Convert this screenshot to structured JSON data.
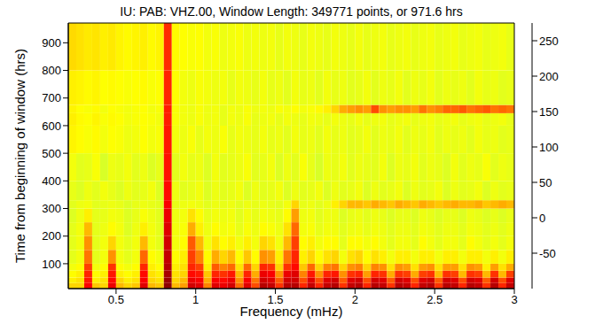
{
  "chart_data": {
    "type": "heatmap",
    "title": "IU: PAB: VHZ.00,  Window Length: 349771 points, or 971.6 hrs",
    "x_label": "Frequency (mHz)",
    "y_label": "Time from beginning of window (hrs)",
    "xlim": [
      0.2,
      3
    ],
    "xticks": [
      0.5,
      1,
      1.5,
      2,
      2.5,
      3
    ],
    "ylim": [
      10,
      971.6
    ],
    "yticks": [
      100,
      200,
      300,
      400,
      500,
      600,
      700,
      800,
      900
    ],
    "x_edges": [
      0.2,
      0.25,
      0.3,
      0.35,
      0.4,
      0.45,
      0.5,
      0.55,
      0.6,
      0.65,
      0.7,
      0.75,
      0.8,
      0.85,
      0.9,
      0.95,
      1,
      1.05,
      1.1,
      1.15,
      1.2,
      1.25,
      1.3,
      1.35,
      1.4,
      1.45,
      1.5,
      1.55,
      1.6,
      1.65,
      1.7,
      1.75,
      1.8,
      1.85,
      1.9,
      1.95,
      2,
      2.05,
      2.1,
      2.15,
      2.2,
      2.25,
      2.3,
      2.35,
      2.4,
      2.45,
      2.5,
      2.55,
      2.6,
      2.65,
      2.7,
      2.75,
      2.8,
      2.85,
      2.9,
      2.95,
      3
    ],
    "y_edges": [
      10,
      30,
      50,
      75,
      100,
      150,
      200,
      250,
      300,
      330,
      400,
      500,
      600,
      645,
      675,
      800,
      971.6
    ],
    "cells": [
      [
        150,
        150,
        230,
        155,
        150,
        235,
        160,
        150,
        155,
        240,
        160,
        155,
        270,
        160,
        170,
        245,
        240,
        180,
        240,
        235,
        245,
        190,
        240,
        200,
        255,
        250,
        210,
        255,
        255,
        215,
        250,
        215,
        250,
        255,
        210,
        250,
        255,
        215,
        255,
        250,
        210,
        255,
        250,
        215,
        250,
        255,
        210,
        255,
        250,
        215,
        255,
        250,
        210,
        255,
        215,
        250
      ],
      [
        140,
        145,
        220,
        140,
        145,
        225,
        150,
        140,
        145,
        230,
        150,
        145,
        265,
        150,
        160,
        235,
        230,
        165,
        230,
        225,
        235,
        175,
        230,
        185,
        245,
        240,
        195,
        245,
        245,
        200,
        240,
        200,
        240,
        245,
        195,
        240,
        245,
        200,
        245,
        240,
        195,
        245,
        240,
        200,
        240,
        245,
        195,
        245,
        240,
        200,
        245,
        240,
        195,
        245,
        200,
        240
      ],
      [
        135,
        140,
        215,
        135,
        140,
        220,
        140,
        135,
        140,
        225,
        145,
        140,
        260,
        145,
        150,
        225,
        220,
        155,
        215,
        210,
        220,
        160,
        215,
        165,
        235,
        230,
        175,
        235,
        240,
        180,
        220,
        175,
        215,
        220,
        175,
        210,
        215,
        170,
        215,
        210,
        165,
        210,
        205,
        165,
        205,
        210,
        160,
        210,
        205,
        160,
        210,
        205,
        160,
        210,
        160,
        205
      ],
      [
        130,
        135,
        205,
        130,
        135,
        210,
        135,
        130,
        135,
        215,
        140,
        135,
        255,
        140,
        145,
        215,
        205,
        140,
        195,
        180,
        190,
        145,
        190,
        150,
        215,
        210,
        150,
        210,
        225,
        155,
        190,
        150,
        180,
        185,
        150,
        175,
        180,
        150,
        180,
        175,
        145,
        175,
        170,
        145,
        170,
        175,
        145,
        170,
        170,
        145,
        175,
        170,
        140,
        170,
        145,
        165
      ],
      [
        125,
        130,
        185,
        125,
        130,
        175,
        130,
        125,
        130,
        190,
        135,
        130,
        250,
        135,
        140,
        205,
        180,
        135,
        165,
        150,
        160,
        135,
        155,
        135,
        175,
        170,
        140,
        185,
        215,
        140,
        150,
        135,
        145,
        150,
        130,
        145,
        150,
        135,
        145,
        140,
        130,
        140,
        140,
        130,
        140,
        140,
        130,
        140,
        140,
        130,
        140,
        140,
        130,
        140,
        130,
        140
      ],
      [
        125,
        130,
        175,
        125,
        130,
        150,
        130,
        125,
        130,
        160,
        130,
        125,
        245,
        130,
        135,
        195,
        160,
        130,
        145,
        135,
        140,
        130,
        140,
        130,
        150,
        145,
        130,
        160,
        205,
        135,
        140,
        130,
        135,
        135,
        125,
        135,
        135,
        130,
        135,
        130,
        125,
        130,
        130,
        125,
        135,
        130,
        125,
        130,
        130,
        125,
        135,
        130,
        125,
        130,
        125,
        130
      ],
      [
        125,
        130,
        160,
        125,
        128,
        135,
        130,
        122,
        128,
        140,
        130,
        125,
        240,
        130,
        132,
        165,
        140,
        128,
        135,
        130,
        132,
        126,
        132,
        128,
        135,
        132,
        128,
        145,
        190,
        130,
        132,
        126,
        130,
        130,
        124,
        128,
        130,
        126,
        130,
        128,
        124,
        128,
        128,
        124,
        130,
        128,
        124,
        128,
        128,
        124,
        130,
        128,
        124,
        128,
        124,
        128
      ],
      [
        122,
        128,
        140,
        125,
        126,
        130,
        128,
        122,
        126,
        132,
        128,
        124,
        235,
        128,
        130,
        145,
        135,
        126,
        130,
        128,
        130,
        124,
        130,
        126,
        130,
        128,
        126,
        135,
        170,
        128,
        130,
        124,
        128,
        128,
        122,
        126,
        128,
        124,
        128,
        126,
        122,
        126,
        126,
        122,
        128,
        126,
        122,
        126,
        126,
        122,
        128,
        126,
        122,
        126,
        122,
        126
      ],
      [
        124,
        128,
        130,
        124,
        126,
        128,
        126,
        122,
        126,
        128,
        126,
        124,
        230,
        126,
        128,
        130,
        128,
        124,
        128,
        126,
        128,
        124,
        128,
        126,
        128,
        126,
        124,
        130,
        150,
        126,
        128,
        124,
        128,
        140,
        150,
        160,
        160,
        155,
        165,
        160,
        155,
        165,
        160,
        155,
        165,
        160,
        155,
        160,
        165,
        160,
        160,
        165,
        155,
        160,
        165,
        160
      ],
      [
        126,
        122,
        128,
        124,
        130,
        126,
        122,
        128,
        124,
        126,
        130,
        122,
        225,
        128,
        124,
        126,
        130,
        122,
        128,
        124,
        126,
        130,
        122,
        128,
        124,
        126,
        130,
        122,
        128,
        124,
        126,
        130,
        122,
        128,
        124,
        126,
        130,
        122,
        128,
        124,
        126,
        130,
        122,
        128,
        124,
        126,
        130,
        122,
        128,
        124,
        126,
        130,
        122,
        128,
        124,
        126
      ],
      [
        130,
        124,
        126,
        132,
        120,
        128,
        126,
        130,
        124,
        128,
        122,
        126,
        222,
        124,
        130,
        126,
        128,
        122,
        130,
        124,
        126,
        128,
        132,
        124,
        126,
        130,
        122,
        128,
        124,
        132,
        126,
        120,
        128,
        126,
        130,
        124,
        128,
        126,
        124,
        130,
        122,
        128,
        126,
        130,
        124,
        128,
        126,
        122,
        130,
        124,
        128,
        126,
        132,
        124,
        128,
        126
      ],
      [
        138,
        135,
        132,
        136,
        130,
        134,
        132,
        128,
        130,
        134,
        130,
        132,
        220,
        130,
        128,
        132,
        126,
        130,
        128,
        132,
        126,
        130,
        128,
        126,
        130,
        126,
        128,
        124,
        130,
        126,
        128,
        124,
        130,
        126,
        128,
        124,
        126,
        130,
        124,
        128,
        126,
        130,
        124,
        128,
        126,
        130,
        124,
        128,
        126,
        128,
        124,
        130,
        126,
        128,
        124,
        126
      ],
      [
        140,
        136,
        134,
        138,
        132,
        136,
        134,
        130,
        132,
        134,
        132,
        130,
        218,
        132,
        130,
        128,
        132,
        128,
        130,
        126,
        130,
        128,
        132,
        126,
        128,
        130,
        126,
        130,
        128,
        126,
        130,
        128,
        126,
        130,
        128,
        126,
        130,
        126,
        128,
        130,
        126,
        128,
        130,
        126,
        128,
        130,
        126,
        128,
        130,
        126,
        128,
        130,
        126,
        128,
        130,
        126
      ],
      [
        138,
        134,
        132,
        136,
        130,
        134,
        132,
        130,
        132,
        134,
        130,
        132,
        218,
        132,
        130,
        128,
        132,
        128,
        130,
        126,
        130,
        128,
        132,
        128,
        130,
        128,
        132,
        130,
        134,
        130,
        132,
        136,
        140,
        150,
        165,
        170,
        175,
        170,
        200,
        175,
        170,
        175,
        175,
        170,
        185,
        175,
        180,
        190,
        190,
        195,
        185,
        190,
        195,
        185,
        190,
        185
      ],
      [
        140,
        138,
        136,
        138,
        134,
        136,
        134,
        132,
        134,
        136,
        132,
        134,
        215,
        134,
        130,
        128,
        132,
        130,
        128,
        130,
        126,
        130,
        128,
        126,
        130,
        126,
        128,
        124,
        130,
        126,
        128,
        124,
        130,
        126,
        128,
        124,
        126,
        130,
        124,
        128,
        126,
        130,
        124,
        128,
        126,
        130,
        124,
        128,
        126,
        128,
        124,
        130,
        126,
        128,
        124,
        126
      ],
      [
        148,
        145,
        142,
        144,
        140,
        142,
        138,
        136,
        138,
        140,
        136,
        138,
        212,
        136,
        134,
        132,
        134,
        130,
        132,
        128,
        130,
        132,
        128,
        130,
        128,
        130,
        126,
        130,
        128,
        126,
        130,
        128,
        126,
        130,
        128,
        126,
        130,
        126,
        128,
        130,
        126,
        128,
        130,
        126,
        128,
        130,
        126,
        128,
        130,
        126,
        128,
        130,
        126,
        128,
        130,
        126
      ]
    ],
    "colorbar": {
      "range": [
        -100,
        275
      ],
      "ticks": [
        -50,
        0,
        50,
        100,
        150,
        200,
        250
      ]
    }
  }
}
